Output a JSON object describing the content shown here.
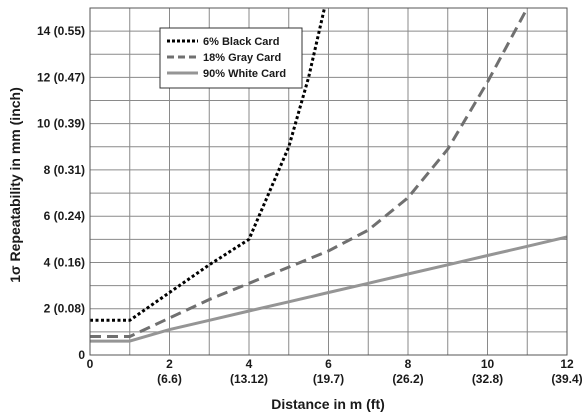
{
  "chart_data": {
    "type": "line",
    "title": "",
    "xlabel": "Distance in m (ft)",
    "ylabel": "1σ Repeatability in mm (inch)",
    "xlim": [
      0,
      12
    ],
    "ylim": [
      0,
      15
    ],
    "grid": true,
    "legend_position": "top-left",
    "x_ticks": [
      {
        "value": 0,
        "label": "0",
        "sublabel": ""
      },
      {
        "value": 2,
        "label": "2",
        "sublabel": "(6.6)"
      },
      {
        "value": 4,
        "label": "4",
        "sublabel": "(13.12)"
      },
      {
        "value": 6,
        "label": "6",
        "sublabel": "(19.7)"
      },
      {
        "value": 8,
        "label": "8",
        "sublabel": "(26.2)"
      },
      {
        "value": 10,
        "label": "10",
        "sublabel": "(32.8)"
      },
      {
        "value": 12,
        "label": "12",
        "sublabel": "(39.4)"
      }
    ],
    "y_ticks": [
      {
        "value": 0,
        "label": "0"
      },
      {
        "value": 2,
        "label": "2 (0.08)"
      },
      {
        "value": 4,
        "label": "4 (0.16)"
      },
      {
        "value": 6,
        "label": "6 (0.24)"
      },
      {
        "value": 8,
        "label": "8 (0.31)"
      },
      {
        "value": 10,
        "label": "10 (0.39)"
      },
      {
        "value": 12,
        "label": "12 (0.47)"
      },
      {
        "value": 14,
        "label": "14 (0.55)"
      }
    ],
    "x_grid_step": 1,
    "y_grid_step": 1,
    "series": [
      {
        "name": "6% Black Card",
        "color": "#000000",
        "style": "dotted",
        "points": [
          [
            0,
            1.5
          ],
          [
            1,
            1.5
          ],
          [
            2,
            2.7
          ],
          [
            3,
            3.9
          ],
          [
            4,
            5.0
          ],
          [
            5,
            9.0
          ],
          [
            5.5,
            12.0
          ],
          [
            5.9,
            15.0
          ]
        ]
      },
      {
        "name": "18% Gray Card",
        "color": "#707070",
        "style": "dashed",
        "points": [
          [
            0,
            0.8
          ],
          [
            1,
            0.8
          ],
          [
            2,
            1.6
          ],
          [
            3,
            2.4
          ],
          [
            4,
            3.1
          ],
          [
            5,
            3.8
          ],
          [
            6,
            4.5
          ],
          [
            7,
            5.4
          ],
          [
            8,
            6.8
          ],
          [
            9,
            8.9
          ],
          [
            10,
            11.8
          ],
          [
            11,
            15.0
          ]
        ]
      },
      {
        "name": "90% White Card",
        "color": "#959595",
        "style": "solid",
        "points": [
          [
            0,
            0.6
          ],
          [
            1,
            0.6
          ],
          [
            2,
            1.1
          ],
          [
            3,
            1.5
          ],
          [
            4,
            1.9
          ],
          [
            5,
            2.3
          ],
          [
            6,
            2.7
          ],
          [
            7,
            3.1
          ],
          [
            8,
            3.5
          ],
          [
            9,
            3.9
          ],
          [
            10,
            4.3
          ],
          [
            11,
            4.7
          ],
          [
            12,
            5.1
          ]
        ]
      }
    ]
  }
}
